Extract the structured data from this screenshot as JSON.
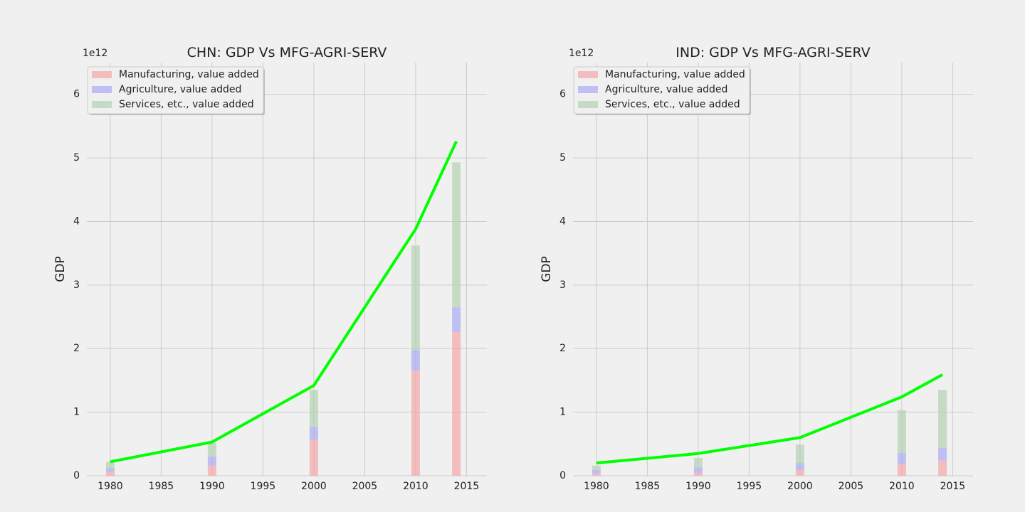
{
  "chart_data": [
    {
      "type": "bar",
      "title": "CHN: GDP Vs MFG-AGRI-SERV",
      "xlabel": "",
      "ylabel": "GDP",
      "y_offset_label": "1e12",
      "xlim": [
        1977.7,
        2017.0
      ],
      "ylim": [
        0,
        6.5
      ],
      "xticks": [
        1980,
        1985,
        1990,
        1995,
        2000,
        2005,
        2010,
        2015
      ],
      "yticks": [
        0,
        1,
        2,
        3,
        4,
        5,
        6
      ],
      "grid": true,
      "legend_position": "top-left",
      "years": [
        1980,
        1990,
        2000,
        2010,
        2014
      ],
      "series": [
        {
          "name": "Manufacturing, value added",
          "kind": "bar",
          "color": "#f4a6a6",
          "values": [
            0.06,
            0.16,
            0.57,
            1.65,
            2.26
          ]
        },
        {
          "name": "Agriculture, value added",
          "kind": "bar",
          "color": "#aaaaf5",
          "values": [
            0.06,
            0.14,
            0.2,
            0.33,
            0.39
          ]
        },
        {
          "name": "Services, etc., value added",
          "kind": "bar",
          "color": "#b3d1b3",
          "values": [
            0.1,
            0.22,
            0.58,
            1.64,
            2.28
          ]
        },
        {
          "kind": "line",
          "color": "#00ff00",
          "x": [
            1980,
            1990,
            2000,
            2010,
            2014
          ],
          "values": [
            0.22,
            0.53,
            1.42,
            3.88,
            5.26
          ]
        }
      ]
    },
    {
      "type": "bar",
      "title": "IND: GDP Vs MFG-AGRI-SERV",
      "xlabel": "",
      "ylabel": "GDP",
      "y_offset_label": "1e12",
      "xlim": [
        1977.7,
        2017.0
      ],
      "ylim": [
        0,
        6.5
      ],
      "xticks": [
        1980,
        1985,
        1990,
        1995,
        2000,
        2005,
        2010,
        2015
      ],
      "yticks": [
        0,
        1,
        2,
        3,
        4,
        5,
        6
      ],
      "grid": true,
      "legend_position": "top-left",
      "years": [
        1980,
        1990,
        2000,
        2010,
        2014
      ],
      "series": [
        {
          "name": "Manufacturing, value added",
          "kind": "bar",
          "color": "#f4a6a6",
          "values": [
            0.03,
            0.05,
            0.09,
            0.19,
            0.24
          ]
        },
        {
          "name": "Agriculture, value added",
          "kind": "bar",
          "color": "#aaaaf5",
          "values": [
            0.06,
            0.08,
            0.11,
            0.17,
            0.2
          ]
        },
        {
          "name": "Services, etc., value added",
          "kind": "bar",
          "color": "#b3d1b3",
          "values": [
            0.07,
            0.15,
            0.29,
            0.67,
            0.91
          ]
        },
        {
          "kind": "line",
          "color": "#00ff00",
          "x": [
            1980,
            1990,
            2000,
            2010,
            2014
          ],
          "values": [
            0.2,
            0.35,
            0.6,
            1.24,
            1.59
          ]
        }
      ]
    }
  ]
}
